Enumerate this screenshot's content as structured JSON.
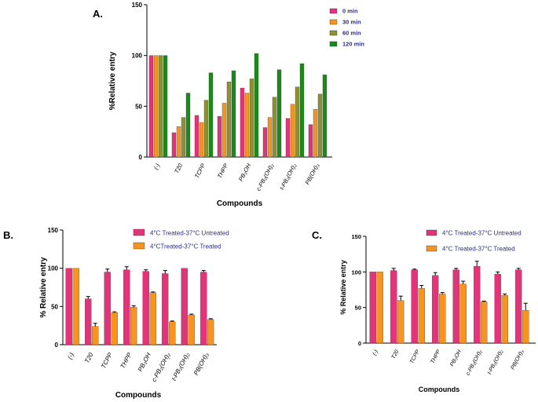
{
  "colors": {
    "pink": "#e5337a",
    "orange": "#f7941d",
    "olive": "#8d9132",
    "green": "#1b8a1b",
    "axis": "#000000",
    "legendText": "#2c2c8c"
  },
  "chart_data": [
    {
      "panel": "A.",
      "type": "bar",
      "title": "",
      "xlabel": "Compounds",
      "ylabel": "%Relative entry",
      "ylim": [
        0,
        150
      ],
      "yticks": [
        0,
        50,
        100,
        150
      ],
      "categories": [
        "(-)",
        "T20",
        "TCPP",
        "THPP",
        "PB₃OH",
        "c-PB₂(OH)₂",
        "t-PB₂(OH)₂",
        "PB(OH)₃"
      ],
      "legend_position": "top-right",
      "error_bars": false,
      "series": [
        {
          "name": "0 min",
          "color": "#e5337a",
          "values": [
            100,
            24,
            41,
            40,
            68,
            29,
            38,
            32
          ]
        },
        {
          "name": "30 min",
          "color": "#f7941d",
          "values": [
            100,
            30,
            34,
            53,
            63,
            39,
            52,
            47
          ]
        },
        {
          "name": "60 min",
          "color": "#8d9132",
          "values": [
            100,
            39,
            56,
            74,
            77,
            59,
            69,
            62
          ]
        },
        {
          "name": "120 min",
          "color": "#1b8a1b",
          "values": [
            100,
            63,
            83,
            85,
            102,
            86,
            92,
            81
          ]
        }
      ]
    },
    {
      "panel": "B.",
      "type": "bar",
      "title": "",
      "xlabel": "Compounds",
      "ylabel": "% Relative entry",
      "ylim": [
        0,
        150
      ],
      "yticks": [
        0,
        50,
        100,
        150
      ],
      "categories": [
        "(-)",
        "T20",
        "TCPP",
        "THPP",
        "PB₃OH",
        "c-PB₂(OH)₂",
        "t-PB₂(OH)₂",
        "PB(OH)₃"
      ],
      "legend_position": "top",
      "error_bars": true,
      "series": [
        {
          "name": "4°C Treated-37°C Untreated",
          "color": "#e5337a",
          "values": [
            100,
            60,
            95,
            98,
            96,
            93,
            100,
            95
          ],
          "errors": [
            0,
            3,
            4,
            4,
            2,
            4,
            0,
            2
          ]
        },
        {
          "name": "4°CTreated-37°C Treated",
          "color": "#f7941d",
          "values": [
            100,
            24,
            42,
            49,
            68,
            30,
            39,
            33
          ],
          "errors": [
            0,
            4,
            1,
            2,
            1,
            1,
            1,
            1
          ]
        }
      ]
    },
    {
      "panel": "C.",
      "type": "bar",
      "title": "",
      "xlabel": "Compounds",
      "ylabel": "% Relative entry",
      "ylim": [
        0,
        150
      ],
      "yticks": [
        0,
        50,
        100,
        150
      ],
      "categories": [
        "(-)",
        "T20",
        "TCPP",
        "THPP",
        "PB₃OH",
        "c-PB₂(OH)₂",
        "t-PB₂(OH)₂",
        "PB(OH)₃"
      ],
      "legend_position": "top",
      "error_bars": true,
      "series": [
        {
          "name": "4°C Treated-37°C Untreated",
          "color": "#e5337a",
          "values": [
            100,
            102,
            103,
            95,
            103,
            108,
            97,
            103
          ],
          "errors": [
            0,
            3,
            1,
            4,
            2,
            7,
            3,
            2
          ]
        },
        {
          "name": "4°C Treated-37°C Treated",
          "color": "#f7941d",
          "values": [
            100,
            60,
            77,
            69,
            83,
            58,
            67,
            46
          ],
          "errors": [
            0,
            6,
            4,
            2,
            4,
            1,
            2,
            10
          ]
        }
      ]
    }
  ]
}
